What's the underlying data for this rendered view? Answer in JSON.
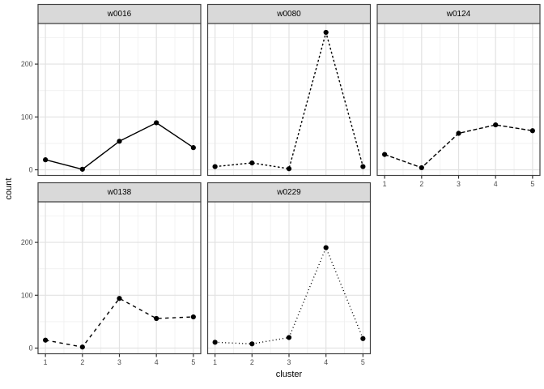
{
  "chart_data": {
    "type": "line",
    "title": "",
    "xlabel": "cluster",
    "ylabel": "count",
    "x": [
      1,
      2,
      3,
      4,
      5
    ],
    "facets": [
      {
        "label": "w0016",
        "linetype": "solid",
        "values": [
          19,
          1,
          54,
          89,
          42
        ]
      },
      {
        "label": "w0080",
        "linetype": "dashed-short",
        "values": [
          6,
          13,
          2,
          260,
          6
        ]
      },
      {
        "label": "w0124",
        "linetype": "dashed-long",
        "values": [
          29,
          4,
          69,
          85,
          74
        ]
      },
      {
        "label": "w0138",
        "linetype": "dashed-medium",
        "values": [
          15,
          2,
          94,
          56,
          59
        ]
      },
      {
        "label": "w0229",
        "linetype": "dotted",
        "values": [
          11,
          8,
          20,
          190,
          18
        ]
      }
    ],
    "y_ticks": [
      0,
      100,
      200
    ],
    "y_minor": [
      50,
      150,
      250
    ],
    "x_minor": [
      1.5,
      2.5,
      3.5,
      4.5
    ],
    "xlim": [
      0.8,
      5.2
    ],
    "ylim": [
      -10.7,
      276.8
    ],
    "grid": "major+minor",
    "legend": "none",
    "facet_layout": {
      "ncol": 3,
      "nrow": 2
    }
  },
  "colors": {
    "background": "#FFFFFF",
    "strip_bg": "#D9D9D9",
    "strip_border": "#424242",
    "panel_border": "#424242",
    "grid_major": "#E2E2E2",
    "grid_minor": "#EFEFEF",
    "line": "#000000",
    "point": "#000000",
    "tick": "#333333",
    "tick_label": "#4D4D4D",
    "axis_title": "#000000"
  }
}
